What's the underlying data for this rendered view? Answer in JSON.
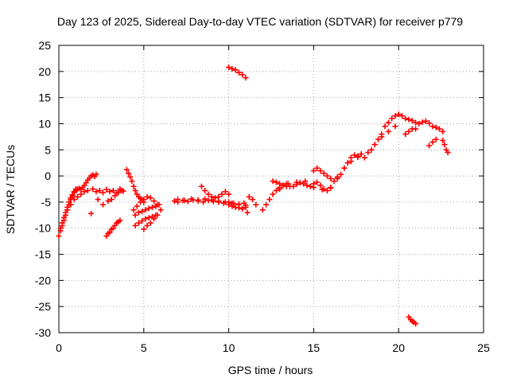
{
  "chart_data": {
    "type": "scatter",
    "title": "Day 123 of 2025, Sidereal Day-to-day VTEC variation (SDTVAR) for receiver p779",
    "xlabel": "GPS time / hours",
    "ylabel": "SDTVAR / TECUs",
    "xlim": [
      0,
      25
    ],
    "ylim": [
      -30,
      25
    ],
    "xticks": [
      0,
      5,
      10,
      15,
      20,
      25
    ],
    "yticks": [
      -30,
      -25,
      -20,
      -15,
      -10,
      -5,
      0,
      5,
      10,
      15,
      20,
      25
    ],
    "grid": true,
    "marker": "+",
    "color": "#ff0000",
    "series": [
      {
        "x": [
          0.0,
          0.1,
          0.2,
          0.3,
          0.4,
          0.5,
          0.6,
          0.7,
          0.8,
          0.9,
          1.0,
          1.1,
          1.2,
          1.3,
          1.4,
          1.5,
          1.6,
          1.7,
          1.8,
          1.9,
          2.0,
          2.1,
          2.2,
          0.1,
          0.2,
          0.3,
          0.4,
          0.5,
          0.6,
          0.7,
          0.8,
          0.9,
          1.0,
          0.3,
          0.5,
          0.7,
          0.9,
          1.1,
          1.3,
          1.5,
          1.7,
          2.0,
          2.2,
          2.4,
          2.6,
          2.8,
          3.0,
          3.2,
          3.4,
          3.6,
          3.8,
          1.9,
          2.3,
          2.6,
          2.9,
          3.1,
          3.3,
          3.5,
          3.7,
          2.8,
          2.9,
          3.0,
          3.1,
          3.2,
          3.3,
          3.4,
          3.5,
          3.6,
          4.0,
          4.1,
          4.2,
          4.3,
          4.4,
          4.5,
          4.6,
          4.7,
          4.8,
          4.9,
          5.0,
          4.4,
          4.6,
          4.8,
          5.0,
          5.2,
          5.4,
          5.6,
          5.8,
          4.5,
          4.7,
          4.9,
          5.1,
          5.3,
          5.5,
          5.7,
          5.9,
          4.5,
          4.7,
          4.9,
          5.1,
          5.3,
          5.5,
          5.7,
          5.0,
          5.2,
          5.4,
          5.6,
          5.8,
          6.0,
          6.8,
          7.0,
          7.3,
          7.6,
          7.9,
          8.2,
          8.5,
          8.8,
          9.1,
          9.4,
          9.7,
          10.0,
          10.3,
          10.6,
          10.9,
          7.0,
          7.4,
          7.8,
          8.2,
          8.6,
          9.0,
          9.4,
          9.8,
          10.2,
          10.6,
          11.0,
          8.4,
          8.6,
          8.8,
          9.0,
          9.2,
          9.4,
          9.6,
          9.8,
          10.0,
          10.0,
          10.2,
          10.4,
          10.6,
          10.8,
          11.0,
          11.2,
          11.4,
          11.6,
          11.1,
          12.0,
          12.2,
          12.4,
          12.6,
          12.8,
          13.0,
          13.2,
          13.4,
          12.6,
          12.8,
          13.0,
          13.2,
          13.4,
          13.6,
          13.8,
          14.0,
          14.2,
          14.4,
          14.6,
          14.8,
          15.0,
          15.2,
          15.4,
          15.6,
          15.8,
          16.0,
          13.0,
          13.5,
          14.0,
          14.5,
          15.0,
          15.5,
          16.0,
          15.0,
          15.2,
          15.4,
          15.6,
          15.8,
          16.0,
          16.2,
          16.4,
          16.6,
          16.8,
          17.0,
          17.2,
          17.4,
          17.6,
          17.8,
          18.0,
          16.4,
          16.8,
          17.2,
          17.6,
          18.2,
          18.4,
          18.6,
          18.8,
          19.0,
          19.2,
          19.4,
          19.6,
          19.8,
          20.0,
          20.2,
          20.4,
          20.6,
          20.8,
          21.0,
          18.6,
          19.0,
          19.4,
          19.8,
          20.4,
          20.6,
          20.8,
          21.0,
          21.2,
          21.4,
          21.6,
          21.8,
          22.0,
          22.2,
          22.4,
          22.6,
          21.8,
          22.0,
          22.2,
          22.6,
          22.7,
          22.8,
          22.9,
          10.0,
          10.2,
          10.4,
          10.6,
          10.8,
          11.0,
          20.6,
          20.7,
          20.8,
          20.9,
          21.0
        ],
        "y": [
          -11.5,
          -10.5,
          -9.5,
          -8.5,
          -7.5,
          -6.5,
          -5.5,
          -4.5,
          -3.8,
          -3.2,
          -2.8,
          -2.5,
          -2.4,
          -2.6,
          -2.2,
          -1.8,
          -1.3,
          -0.8,
          -0.4,
          0.0,
          0.2,
          -0.1,
          0.3,
          -10.0,
          -9.0,
          -8.0,
          -7.0,
          -6.0,
          -5.0,
          -4.2,
          -3.6,
          -3.0,
          -2.5,
          -8.0,
          -6.5,
          -5.5,
          -4.5,
          -4.0,
          -3.5,
          -3.0,
          -2.8,
          -2.5,
          -3.0,
          -2.8,
          -3.2,
          -2.6,
          -3.0,
          -2.8,
          -3.2,
          -2.5,
          -2.9,
          -7.2,
          -4.5,
          -5.5,
          -4.8,
          -4.5,
          -3.8,
          -3.2,
          -2.8,
          -11.5,
          -11.0,
          -10.8,
          -10.2,
          -10.0,
          -9.5,
          -9.0,
          -8.8,
          -8.5,
          1.2,
          0.5,
          -0.2,
          -1.0,
          -2.0,
          -2.8,
          -3.5,
          -4.0,
          -4.3,
          -4.6,
          -5.0,
          -6.5,
          -5.8,
          -5.0,
          -4.5,
          -4.0,
          -4.2,
          -4.8,
          -5.5,
          -7.5,
          -7.0,
          -6.8,
          -6.5,
          -6.2,
          -6.0,
          -5.8,
          -5.5,
          -9.5,
          -9.0,
          -8.6,
          -8.2,
          -8.0,
          -7.8,
          -7.5,
          -10.2,
          -9.5,
          -9.0,
          -8.2,
          -7.5,
          -6.5,
          -4.8,
          -5.0,
          -4.7,
          -4.9,
          -4.6,
          -4.8,
          -5.0,
          -4.7,
          -4.9,
          -5.0,
          -5.2,
          -5.0,
          -5.3,
          -5.5,
          -5.2,
          -4.5,
          -4.7,
          -4.4,
          -4.6,
          -4.4,
          -4.6,
          -4.8,
          -5.0,
          -5.2,
          -5.4,
          -5.6,
          -2.0,
          -2.8,
          -3.5,
          -4.0,
          -4.2,
          -4.0,
          -3.5,
          -3.0,
          -3.5,
          -5.5,
          -5.8,
          -6.0,
          -6.1,
          -6.3,
          -6.0,
          -4.0,
          -4.5,
          -5.5,
          -7.0,
          -6.5,
          -5.5,
          -4.5,
          -3.5,
          -2.8,
          -2.2,
          -1.8,
          -1.5,
          -1.0,
          -1.2,
          -1.5,
          -1.8,
          -2.0,
          -2.0,
          -2.0,
          -1.6,
          -1.3,
          -1.5,
          -1.8,
          -2.0,
          -1.5,
          -1.2,
          -1.8,
          -2.5,
          -2.8,
          -2.3,
          -2.5,
          -1.5,
          -1.2,
          -1.0,
          -2.2,
          -2.6,
          -2.2,
          1.0,
          1.5,
          1.0,
          0.5,
          0.0,
          -0.5,
          -1.0,
          -0.5,
          0.3,
          1.5,
          2.5,
          3.5,
          4.0,
          3.6,
          4.2,
          3.5,
          -0.2,
          1.5,
          2.8,
          3.8,
          4.5,
          5.0,
          6.0,
          7.0,
          8.0,
          9.5,
          10.2,
          11.0,
          11.5,
          11.8,
          11.5,
          11.0,
          10.8,
          10.6,
          10.2,
          6.0,
          7.5,
          8.5,
          9.5,
          8.0,
          8.5,
          9.0,
          9.0,
          10.0,
          10.3,
          10.5,
          10.1,
          9.5,
          9.3,
          9.0,
          8.5,
          5.8,
          6.5,
          7.0,
          6.8,
          6.0,
          5.0,
          4.5,
          20.8,
          20.5,
          20.3,
          19.8,
          19.4,
          18.8,
          -27.0,
          -27.5,
          -27.8,
          -28.0,
          -28.3
        ]
      }
    ]
  }
}
